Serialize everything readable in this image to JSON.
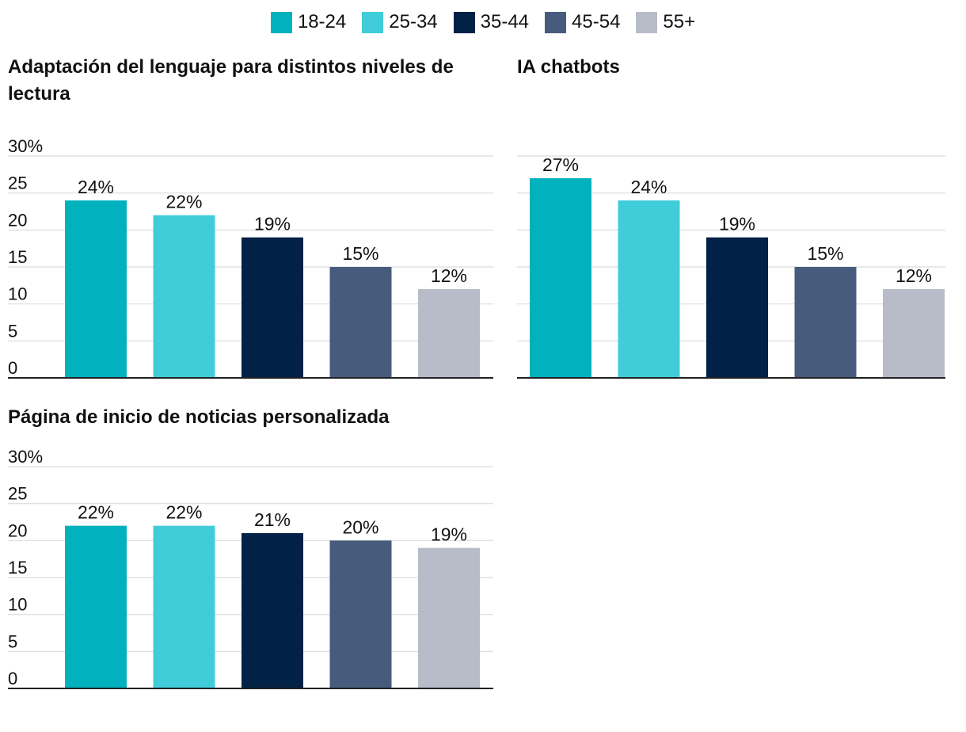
{
  "legend": [
    {
      "label": "18-24",
      "color": "#02b1be"
    },
    {
      "label": "25-34",
      "color": "#40cdd9"
    },
    {
      "label": "35-44",
      "color": "#012146"
    },
    {
      "label": "45-54",
      "color": "#475c7c"
    },
    {
      "label": "55+",
      "color": "#b7bcc8"
    }
  ],
  "chart_data": [
    {
      "type": "bar",
      "title": "Adaptación del lenguaje para distintos niveles de lectura",
      "categories": [
        "18-24",
        "25-34",
        "35-44",
        "45-54",
        "55+"
      ],
      "values": [
        24,
        22,
        19,
        15,
        12
      ],
      "data_labels": [
        "24%",
        "22%",
        "19%",
        "15%",
        "12%"
      ],
      "ylim": [
        0,
        30
      ],
      "yticks": [
        "0",
        "5",
        "10",
        "15",
        "20",
        "25",
        "30%"
      ],
      "show_tick_labels": true
    },
    {
      "type": "bar",
      "title": "IA chatbots",
      "categories": [
        "18-24",
        "25-34",
        "35-44",
        "45-54",
        "55+"
      ],
      "values": [
        27,
        24,
        19,
        15,
        12
      ],
      "data_labels": [
        "27%",
        "24%",
        "19%",
        "15%",
        "12%"
      ],
      "ylim": [
        0,
        30
      ],
      "yticks": [
        "0",
        "5",
        "10",
        "15",
        "20",
        "25",
        "30%"
      ],
      "show_tick_labels": false
    },
    {
      "type": "bar",
      "title": "Página de inicio de noticias personalizada",
      "categories": [
        "18-24",
        "25-34",
        "35-44",
        "45-54",
        "55+"
      ],
      "values": [
        22,
        22,
        21,
        20,
        19
      ],
      "data_labels": [
        "22%",
        "22%",
        "21%",
        "20%",
        "19%"
      ],
      "ylim": [
        0,
        30
      ],
      "yticks": [
        "0",
        "5",
        "10",
        "15",
        "20",
        "25",
        "30%"
      ],
      "show_tick_labels": true
    }
  ]
}
